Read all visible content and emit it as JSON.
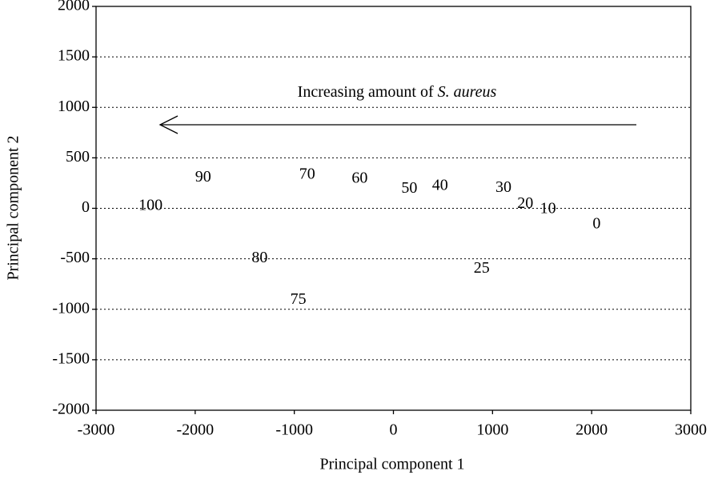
{
  "chart_data": {
    "type": "scatter",
    "x_label": "Principal component 1",
    "y_label": "Principal component 2",
    "annotation": [
      "Increasing amount of ",
      "S. aureus"
    ],
    "point_labels": [
      "100",
      "90",
      "70",
      "60",
      "50",
      "40",
      "30",
      "20",
      "10",
      "0",
      "25",
      "80",
      "75"
    ],
    "x": [
      -2450,
      -1920,
      -870,
      -340,
      160,
      470,
      1110,
      1330,
      1560,
      2050,
      890,
      -1350,
      -960
    ],
    "values": [
      20,
      300,
      330,
      290,
      190,
      220,
      200,
      40,
      -10,
      -160,
      -600,
      -500,
      -910
    ],
    "xlim": [
      -3000,
      3000
    ],
    "ylim": [
      -2000,
      2000
    ],
    "xticks": [
      -3000,
      -2000,
      -1000,
      0,
      1000,
      2000,
      3000
    ],
    "yticks": [
      -2000,
      -1500,
      -1000,
      -500,
      0,
      500,
      1000,
      1500,
      2000
    ],
    "grid": true
  }
}
